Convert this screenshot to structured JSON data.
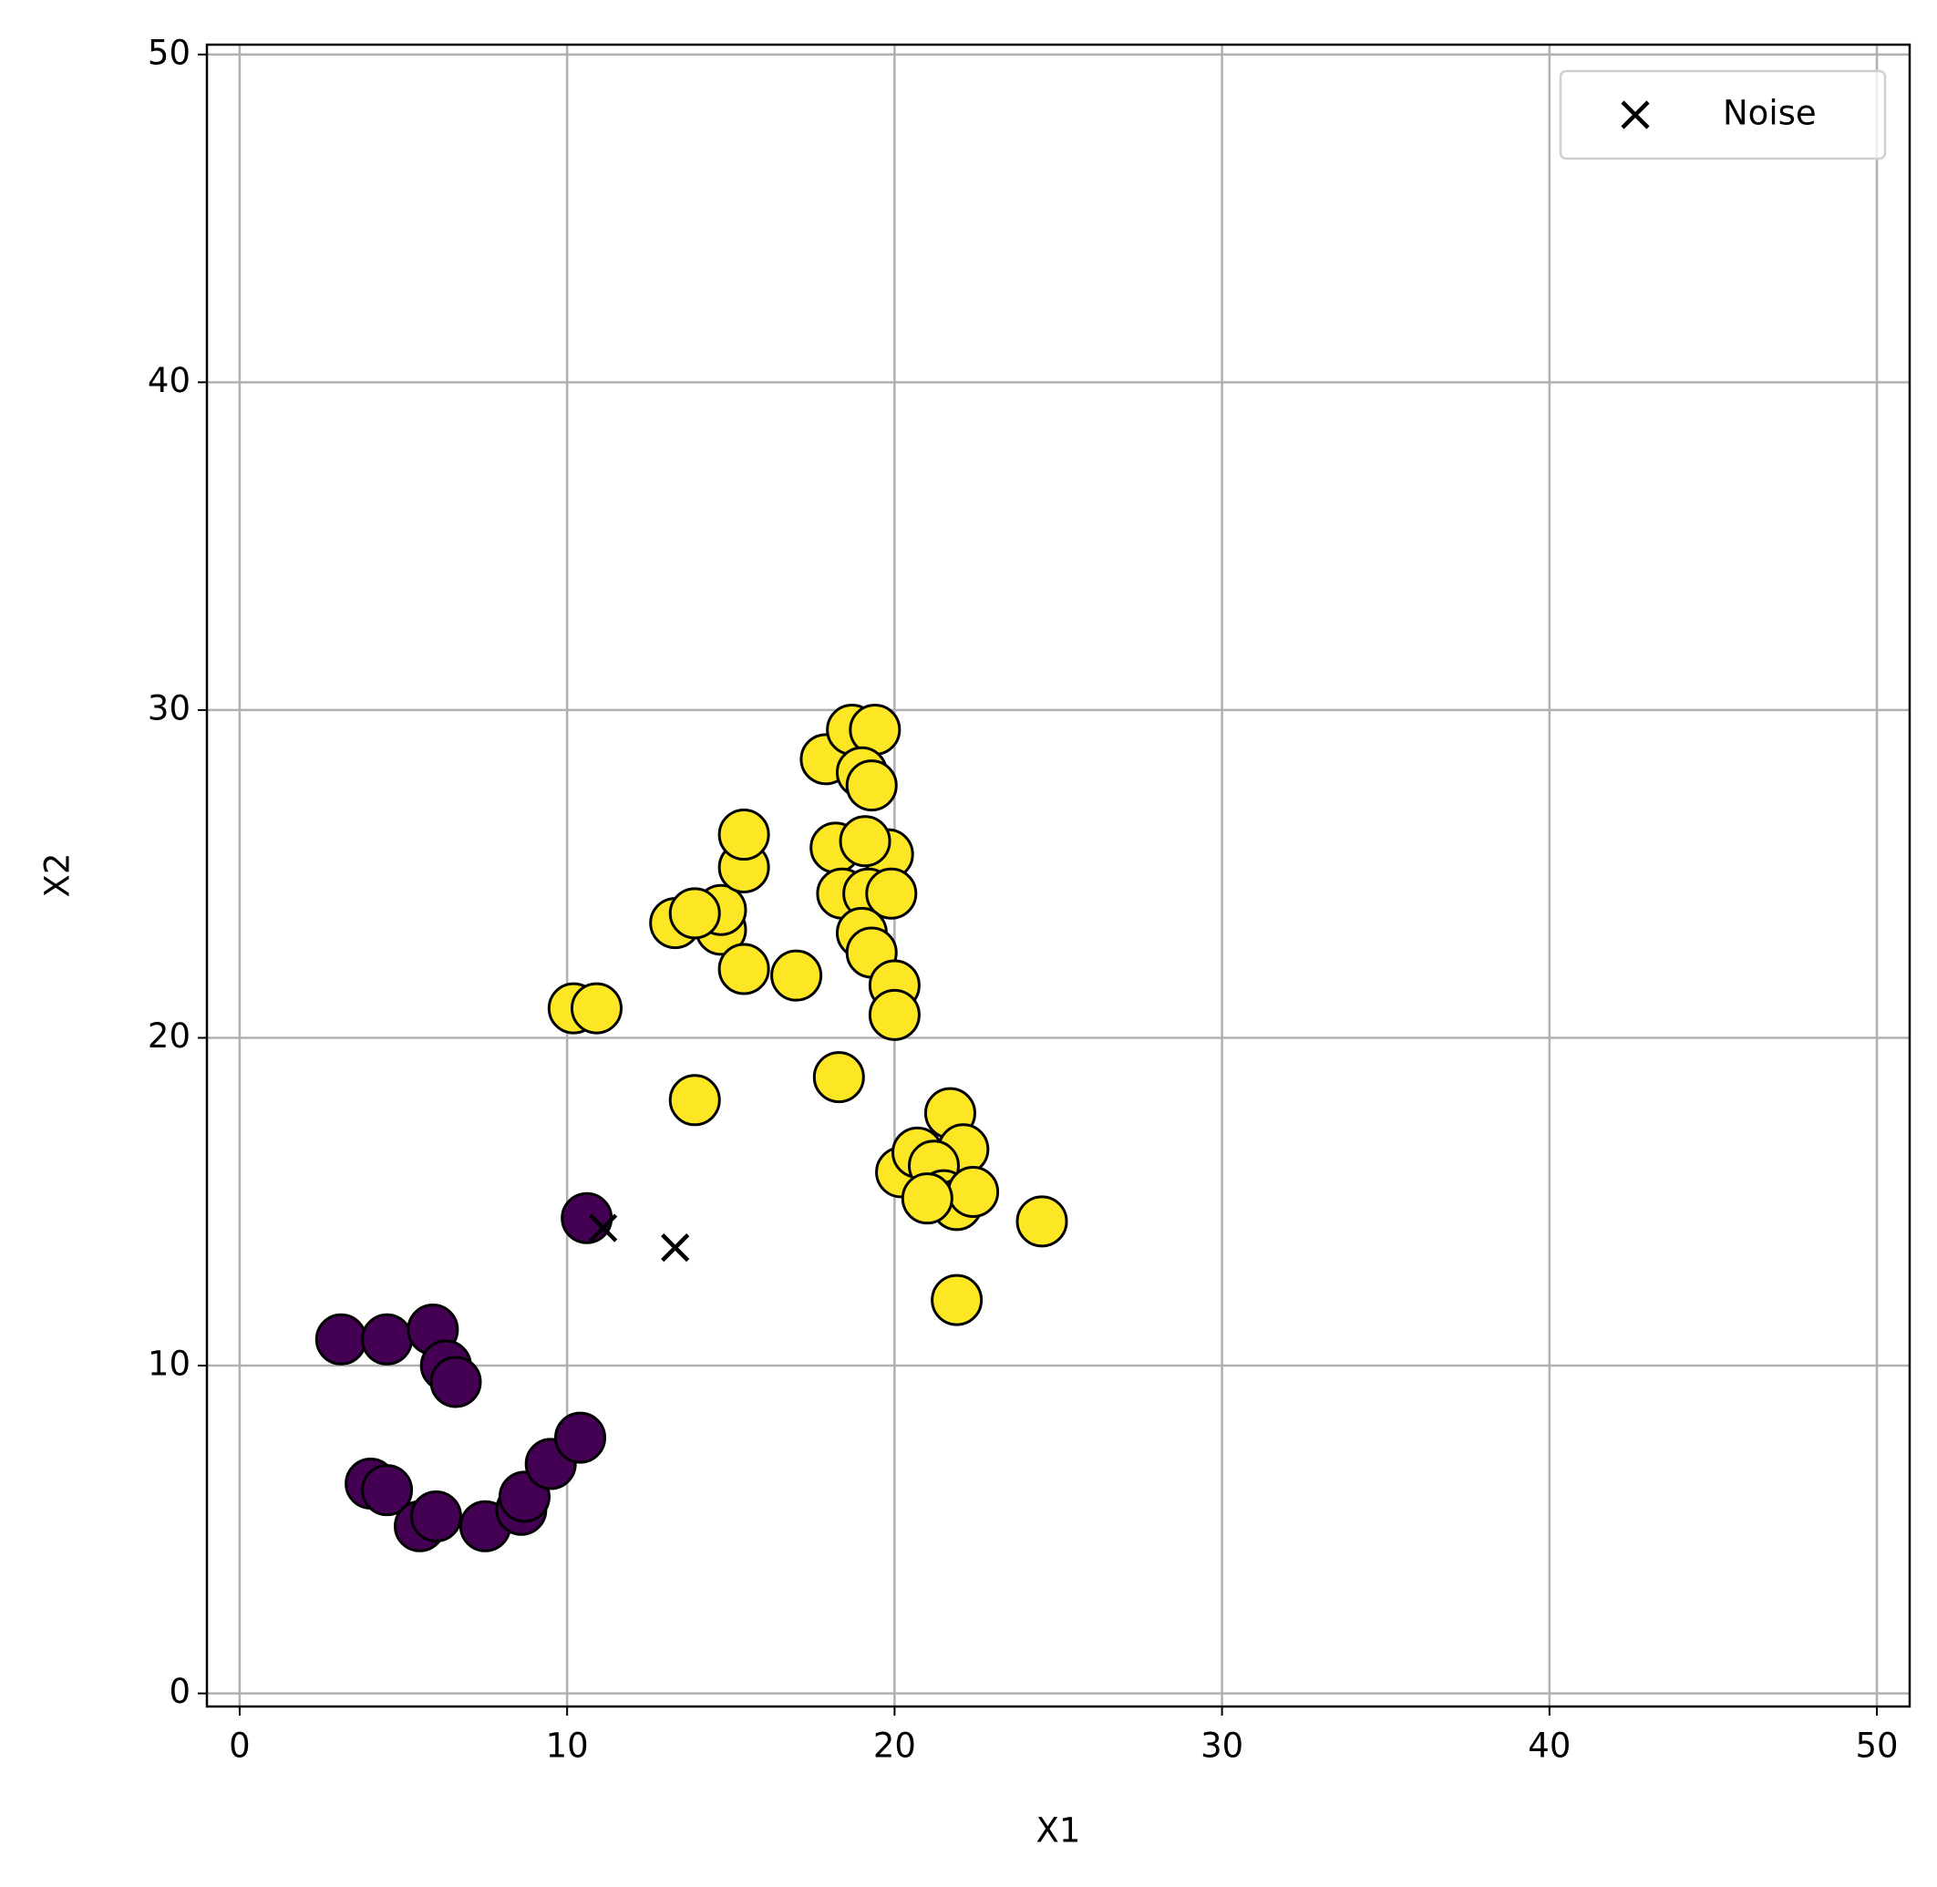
{
  "chart_data": {
    "type": "scatter",
    "xlabel": "X1",
    "ylabel": "X2",
    "xlim": [
      -1,
      51
    ],
    "ylim": [
      -0.4,
      50.3
    ],
    "xticks": [
      0,
      10,
      20,
      30,
      40,
      50
    ],
    "yticks": [
      0,
      10,
      20,
      30,
      40,
      50
    ],
    "grid": true,
    "legend": "upper right",
    "series": [
      {
        "color": "#440154",
        "marker": "circle",
        "x": [
          3.1,
          4.5,
          5.9,
          6.3,
          6.6,
          10.6,
          4.0,
          4.5,
          5.5,
          6.0,
          7.5,
          8.6,
          8.7,
          9.5,
          10.4
        ],
        "y": [
          10.8,
          10.8,
          11.1,
          10.0,
          9.5,
          14.5,
          6.4,
          6.2,
          5.1,
          5.4,
          5.1,
          5.6,
          6.0,
          7.0,
          7.8
        ]
      },
      {
        "color": "#fde725",
        "marker": "circle",
        "x": [
          10.2,
          10.9,
          13.9,
          13.3,
          14.7,
          14.7,
          13.9,
          15.4,
          15.4,
          15.4,
          17.0,
          18.3,
          17.9,
          18.7,
          19.4,
          19.0,
          19.3,
          18.2,
          19.8,
          19.1,
          18.4,
          19.2,
          19.9,
          19.0,
          19.3,
          20.0,
          20.0,
          21.7,
          22.1,
          20.2,
          20.7,
          21.2,
          21.5,
          21.9,
          22.4,
          21.0,
          24.5,
          21.9
        ],
        "y": [
          20.9,
          20.9,
          18.1,
          23.5,
          23.3,
          23.9,
          23.8,
          22.1,
          25.2,
          26.2,
          21.9,
          18.8,
          28.5,
          29.4,
          29.4,
          28.1,
          27.7,
          25.8,
          25.6,
          26.0,
          24.4,
          24.4,
          24.4,
          23.2,
          22.6,
          21.6,
          20.7,
          17.7,
          16.6,
          15.9,
          16.5,
          16.1,
          15.2,
          14.9,
          15.3,
          15.1,
          14.4,
          12.0
        ]
      },
      {
        "name": "Noise",
        "color": "#000000",
        "marker": "x",
        "x": [
          11.1,
          13.3
        ],
        "y": [
          14.2,
          13.6
        ]
      }
    ]
  }
}
